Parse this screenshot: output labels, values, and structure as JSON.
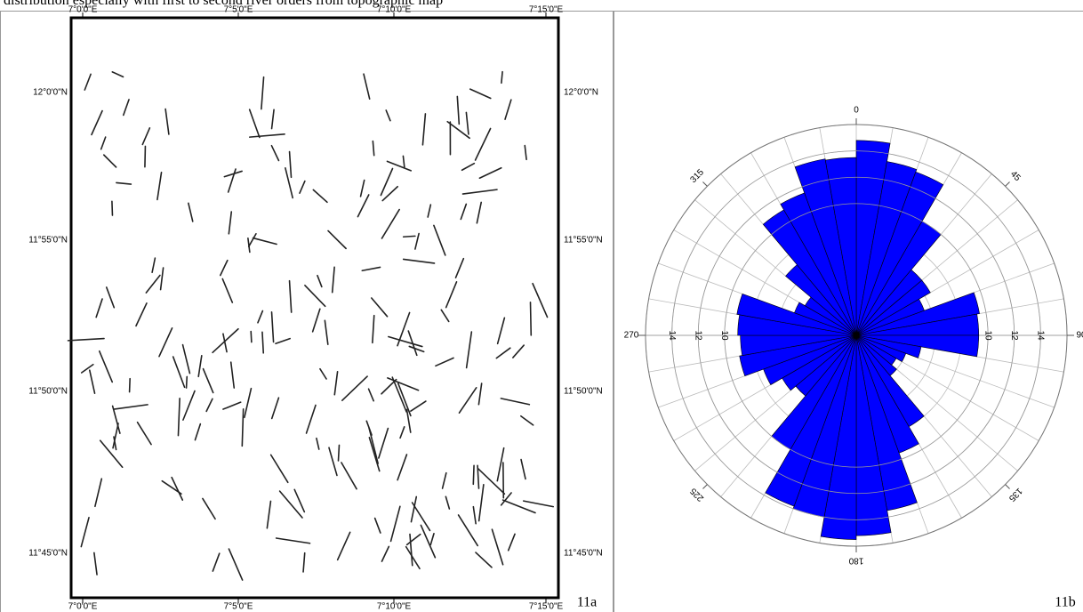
{
  "caption": "distribution especially with first to second river orders from topographic map",
  "map": {
    "label": "11a",
    "x_labels": [
      "7°0'0\"E",
      "7°5'0\"E",
      "7°10'0\"E",
      "7°15'0\"E"
    ],
    "y_labels": [
      "12°0'0\"N",
      "11°55'0\"N",
      "11°50'0\"N",
      "11°45'0\"N"
    ]
  },
  "chart_data": {
    "type": "rose",
    "label": "11b",
    "color": "#0000ff",
    "bin_width": 10,
    "bins": [
      0,
      10,
      20,
      30,
      40,
      50,
      60,
      70,
      80,
      90,
      100,
      110,
      120,
      130,
      140,
      150,
      160,
      170,
      180,
      190,
      200,
      210,
      220,
      230,
      240,
      250,
      260,
      270,
      280,
      290,
      300,
      310,
      320,
      330,
      340,
      350
    ],
    "values": [
      14.8,
      13.4,
      13.2,
      10,
      6.5,
      6.5,
      5.5,
      9.5,
      9.3,
      9.3,
      5,
      4,
      3.5,
      4,
      8,
      9.5,
      13.5,
      15.2,
      15.5,
      14,
      13.8,
      10,
      6,
      6.5,
      7.5,
      9,
      8.8,
      9,
      9.2,
      5,
      4.5,
      7,
      11,
      11.5,
      13.6,
      13.5
    ],
    "rlim": [
      0,
      16
    ],
    "rgrid_step": 2,
    "rticks": [
      10,
      12,
      14
    ],
    "angle_labels": [
      {
        "value": 0,
        "label": "0"
      },
      {
        "value": 45,
        "label": "45"
      },
      {
        "value": 90,
        "label": "90"
      },
      {
        "value": 135,
        "label": "135"
      },
      {
        "value": 180,
        "label": "180"
      },
      {
        "value": 225,
        "label": "225"
      },
      {
        "value": 270,
        "label": "270"
      },
      {
        "value": 315,
        "label": "315"
      }
    ]
  }
}
